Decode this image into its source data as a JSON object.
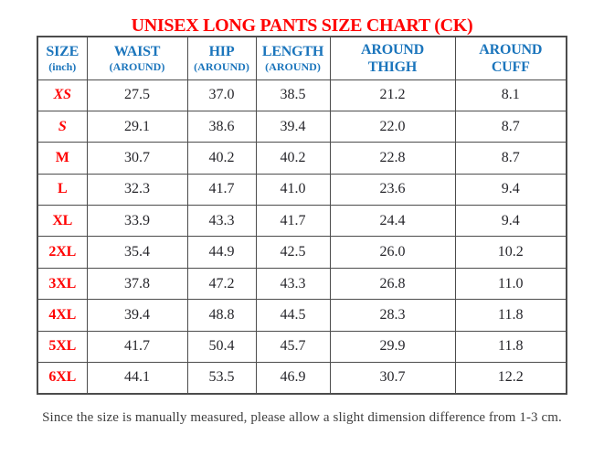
{
  "title": "UNISEX LONG PANTS SIZE CHART (CK)",
  "note": "Since the size is manually measured, please allow a slight dimension difference from 1-3 cm.",
  "colors": {
    "title_red": "#ff0000",
    "header_blue": "#1b75bc",
    "size_label_red": "#ff0000",
    "value_text": "#26262b",
    "table_border": "#4c4c4c"
  },
  "table": {
    "columns": [
      {
        "line1": "SIZE",
        "line2": "(inch)"
      },
      {
        "line1": "WAIST",
        "line2": "(AROUND)"
      },
      {
        "line1": "HIP",
        "line2": "(AROUND)"
      },
      {
        "line1": "LENGTH",
        "line2": "(AROUND)"
      },
      {
        "line1": "AROUND",
        "line2": "THIGH"
      },
      {
        "line1": "AROUND",
        "line2": "CUFF"
      }
    ],
    "rows": [
      {
        "size": "XS",
        "italic": true,
        "values": [
          "27.5",
          "37.0",
          "38.5",
          "21.2",
          "8.1"
        ]
      },
      {
        "size": "S",
        "italic": true,
        "values": [
          "29.1",
          "38.6",
          "39.4",
          "22.0",
          "8.7"
        ]
      },
      {
        "size": "M",
        "italic": false,
        "values": [
          "30.7",
          "40.2",
          "40.2",
          "22.8",
          "8.7"
        ]
      },
      {
        "size": "L",
        "italic": false,
        "values": [
          "32.3",
          "41.7",
          "41.0",
          "23.6",
          "9.4"
        ]
      },
      {
        "size": "XL",
        "italic": false,
        "values": [
          "33.9",
          "43.3",
          "41.7",
          "24.4",
          "9.4"
        ]
      },
      {
        "size": "2XL",
        "italic": false,
        "values": [
          "35.4",
          "44.9",
          "42.5",
          "26.0",
          "10.2"
        ]
      },
      {
        "size": "3XL",
        "italic": false,
        "values": [
          "37.8",
          "47.2",
          "43.3",
          "26.8",
          "11.0"
        ]
      },
      {
        "size": "4XL",
        "italic": false,
        "values": [
          "39.4",
          "48.8",
          "44.5",
          "28.3",
          "11.8"
        ]
      },
      {
        "size": "5XL",
        "italic": false,
        "values": [
          "41.7",
          "50.4",
          "45.7",
          "29.9",
          "11.8"
        ]
      },
      {
        "size": "6XL",
        "italic": false,
        "values": [
          "44.1",
          "53.5",
          "46.9",
          "30.7",
          "12.2"
        ]
      }
    ]
  }
}
